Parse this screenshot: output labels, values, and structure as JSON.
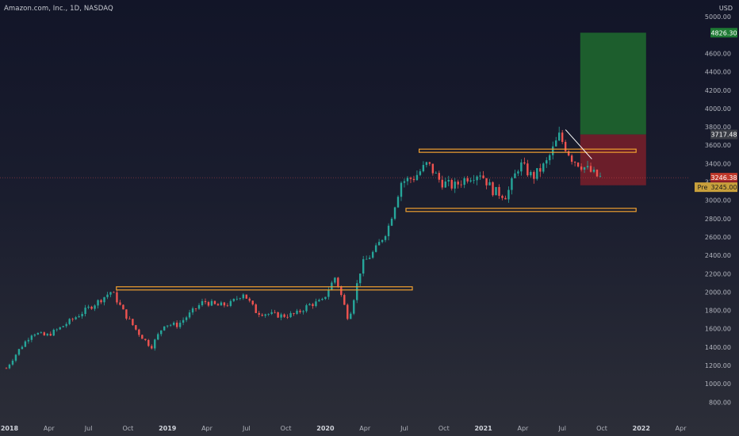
{
  "header": {
    "symbol_title": "Amazon.com, Inc., 1D, NASDAQ",
    "currency": "USD"
  },
  "colors": {
    "background_top": "#121528",
    "background_bottom": "#2c2e38",
    "candle_up": "#26a69a",
    "candle_down": "#ef5350",
    "zone_line": "#f0a030",
    "target_zone": "#1e6b2e",
    "stop_zone": "#7a1e2a",
    "trend_line": "#ffffff",
    "axis_text": "#b2b5be"
  },
  "chart_data": {
    "type": "candlestick",
    "title": "Amazon.com, Inc., 1D, NASDAQ",
    "ylabel": "USD",
    "y_ticks": [
      800,
      1000,
      1200,
      1400,
      1600,
      1800,
      2000,
      2200,
      2400,
      2600,
      2800,
      3000,
      3200,
      3400,
      3600,
      3800,
      4000,
      4200,
      4400,
      4600,
      5000
    ],
    "y_tick_labels": [
      "800.00",
      "1000.00",
      "1200.00",
      "1400.00",
      "1600.00",
      "1800.00",
      "2000.00",
      "2200.00",
      "2400.00",
      "2600.00",
      "2800.00",
      "3000.00",
      "3200.00",
      "3400.00",
      "3600.00",
      "3800.00",
      "4000.00",
      "4200.00",
      "4400.00",
      "4600.00",
      "5000.00"
    ],
    "x_ticks": [
      {
        "label": "2018",
        "date": "2018-01"
      },
      {
        "label": "Apr",
        "date": "2018-04"
      },
      {
        "label": "Jul",
        "date": "2018-07"
      },
      {
        "label": "Oct",
        "date": "2018-10"
      },
      {
        "label": "2019",
        "date": "2019-01"
      },
      {
        "label": "Apr",
        "date": "2019-04"
      },
      {
        "label": "Jul",
        "date": "2019-07"
      },
      {
        "label": "Oct",
        "date": "2019-10"
      },
      {
        "label": "2020",
        "date": "2020-01"
      },
      {
        "label": "Apr",
        "date": "2020-04"
      },
      {
        "label": "Jul",
        "date": "2020-07"
      },
      {
        "label": "Oct",
        "date": "2020-10"
      },
      {
        "label": "2021",
        "date": "2021-01"
      },
      {
        "label": "Apr",
        "date": "2021-04"
      },
      {
        "label": "Jul",
        "date": "2021-07"
      },
      {
        "label": "Oct",
        "date": "2021-10"
      },
      {
        "label": "2022",
        "date": "2022-01"
      },
      {
        "label": "Apr",
        "date": "2022-04"
      }
    ],
    "xlim": [
      "2018-01",
      "2022-07"
    ],
    "price_path": [
      [
        "2018-01",
        1170
      ],
      [
        "2018-02",
        1380
      ],
      [
        "2018-03",
        1560
      ],
      [
        "2018-04",
        1520
      ],
      [
        "2018-05",
        1600
      ],
      [
        "2018-06",
        1700
      ],
      [
        "2018-07",
        1800
      ],
      [
        "2018-08",
        1900
      ],
      [
        "2018-09",
        2010
      ],
      [
        "2018-10",
        1760
      ],
      [
        "2018-11",
        1560
      ],
      [
        "2018-12",
        1400
      ],
      [
        "2019-01",
        1650
      ],
      [
        "2019-02",
        1640
      ],
      [
        "2019-03",
        1770
      ],
      [
        "2019-04",
        1900
      ],
      [
        "2019-05",
        1850
      ],
      [
        "2019-06",
        1870
      ],
      [
        "2019-07",
        1990
      ],
      [
        "2019-08",
        1780
      ],
      [
        "2019-09",
        1760
      ],
      [
        "2019-10",
        1740
      ],
      [
        "2019-11",
        1760
      ],
      [
        "2019-12",
        1860
      ],
      [
        "2020-01",
        1900
      ],
      [
        "2020-02",
        2170
      ],
      [
        "2020-03",
        1700
      ],
      [
        "2020-04",
        2300
      ],
      [
        "2020-05",
        2450
      ],
      [
        "2020-06",
        2700
      ],
      [
        "2020-07",
        3200
      ],
      [
        "2020-08",
        3250
      ],
      [
        "2020-09",
        3400
      ],
      [
        "2020-10",
        3200
      ],
      [
        "2020-11",
        3150
      ],
      [
        "2020-12",
        3250
      ],
      [
        "2021-01",
        3300
      ],
      [
        "2021-02",
        3100
      ],
      [
        "2021-03",
        3050
      ],
      [
        "2021-04",
        3400
      ],
      [
        "2021-05",
        3250
      ],
      [
        "2021-06",
        3400
      ],
      [
        "2021-07",
        3700
      ],
      [
        "2021-08",
        3450
      ],
      [
        "2021-09",
        3350
      ],
      [
        "2021-10",
        3250
      ]
    ],
    "levels": {
      "resistance_2018_2020": {
        "price": 2040,
        "from": "2018-09",
        "to": "2020-07"
      },
      "range_top_2020_2021": {
        "price": 3540,
        "from": "2020-08",
        "to": "2021-12"
      },
      "range_bottom_2020_2021": {
        "price": 2895,
        "from": "2020-07",
        "to": "2021-12"
      }
    },
    "trend_line": {
      "from": [
        "2021-07",
        3770
      ],
      "to": [
        "2021-09",
        3450
      ]
    },
    "position": {
      "type": "long",
      "from": "2021-08",
      "to": "2022-01",
      "entry": 3717.48,
      "stop": 3163.57,
      "target": 4826.3
    },
    "price_labels": {
      "target": "4826.30",
      "entry": "3717.48",
      "last": "3246.38",
      "pre_market": "3245.00",
      "pre_tag": "Pre",
      "stop": "3163.57"
    }
  }
}
